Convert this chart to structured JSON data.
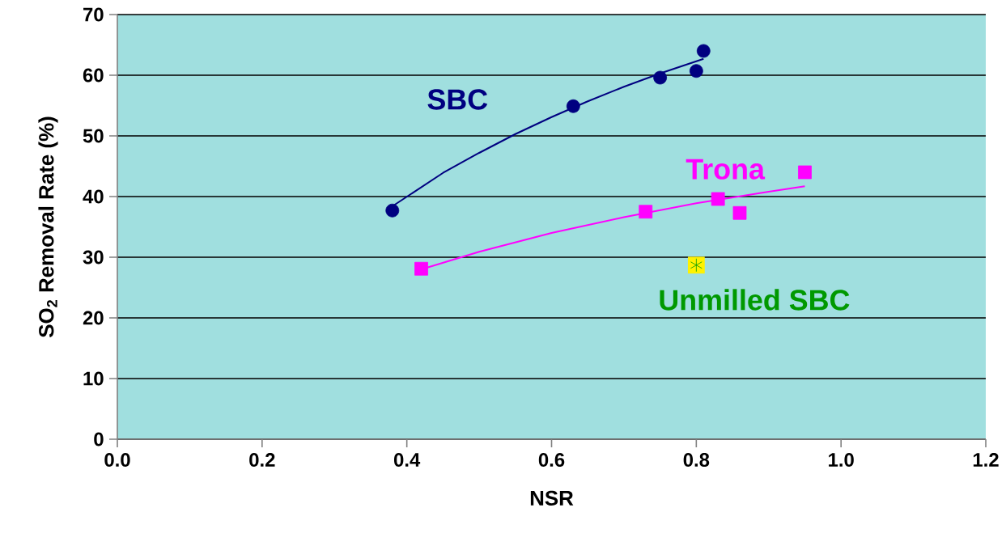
{
  "chart_data": {
    "type": "scatter",
    "xlabel": "NSR",
    "ylabel": "SO$_{2}$ Removal Rate (%)",
    "xlim": [
      0,
      1.2
    ],
    "ylim": [
      0,
      70
    ],
    "xticks": [
      {
        "value": 0,
        "label": "0.0"
      },
      0.2,
      0.4,
      0.6,
      0.8,
      {
        "value": 1,
        "label": "1.0"
      },
      1.2
    ],
    "yticks": [
      0,
      10,
      20,
      30,
      40,
      50,
      60,
      70
    ],
    "grid": "y",
    "series": [
      {
        "name": "SBC",
        "marker": "circle",
        "color": "#000080",
        "x": [
          0.38,
          0.63,
          0.75,
          0.8,
          0.81
        ],
        "values": [
          37.7,
          54.9,
          59.6,
          60.7,
          64
        ]
      },
      {
        "type": "line",
        "marker": "none",
        "color": "#000080",
        "x": [
          0.38,
          0.45,
          0.5,
          0.55,
          0.6,
          0.65,
          0.7,
          0.75,
          0.81
        ],
        "values": [
          38.4,
          43.9,
          47.2,
          50.3,
          53.1,
          55.7,
          58.1,
          60.3,
          62.7
        ]
      },
      {
        "name": "Trona",
        "marker": "square",
        "color": "#ff00ff",
        "x": [
          0.42,
          0.73,
          0.83,
          0.86,
          0.95
        ],
        "values": [
          28.1,
          37.5,
          39.6,
          37.3,
          44
        ]
      },
      {
        "type": "line",
        "marker": "none",
        "color": "#ff00ff",
        "x": [
          0.42,
          0.5,
          0.6,
          0.7,
          0.8,
          0.9,
          0.95
        ],
        "values": [
          28,
          30.9,
          34,
          36.6,
          38.9,
          40.8,
          41.7
        ]
      },
      {
        "name": "Unmilled SBC",
        "marker": "cross",
        "color": "#009900",
        "x": [
          0.8
        ],
        "values": [
          28.7
        ]
      }
    ]
  }
}
